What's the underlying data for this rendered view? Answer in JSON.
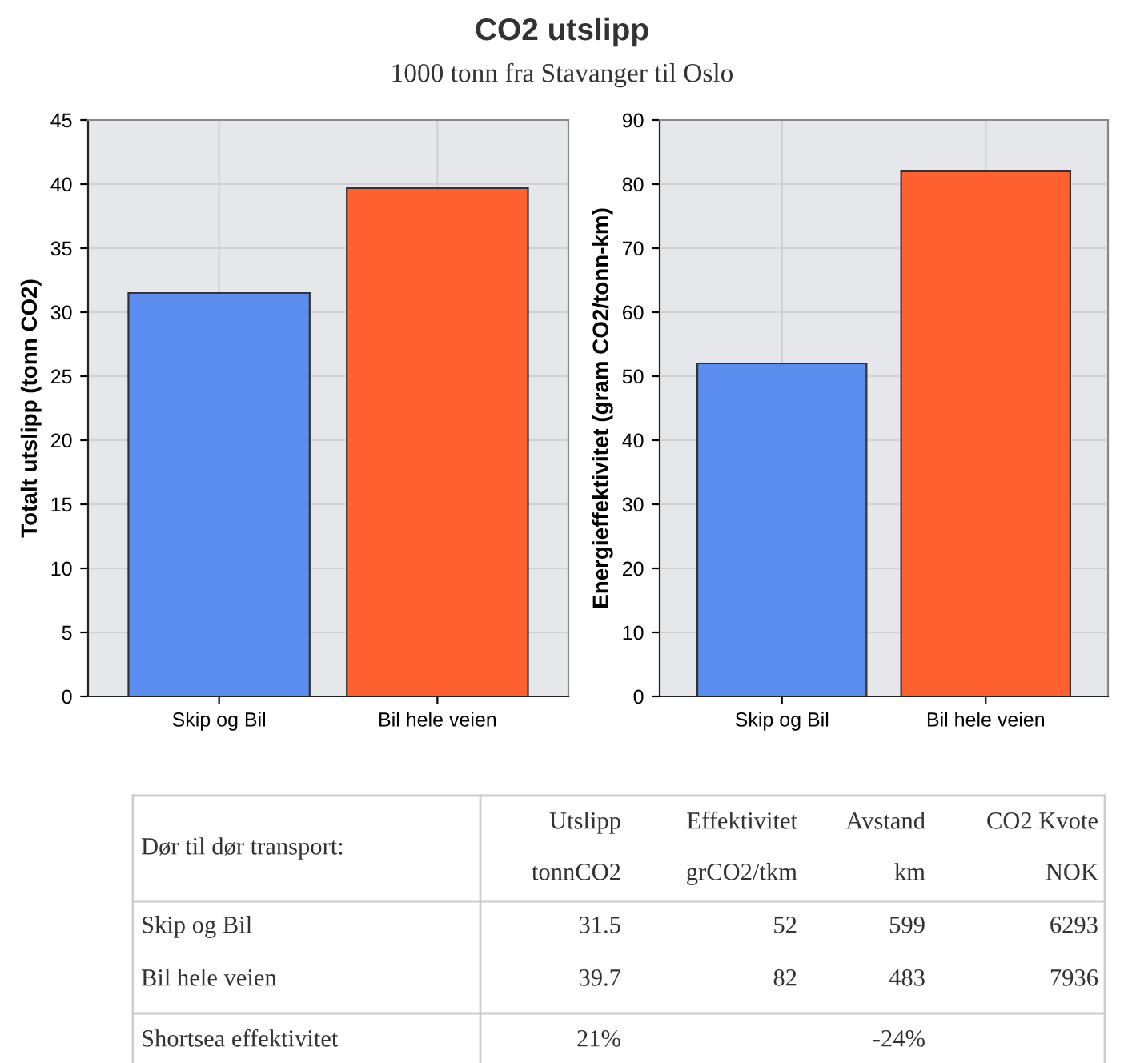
{
  "chart_data": [
    {
      "type": "bar",
      "title": "CO2 utslipp",
      "subtitle": "1000 tonn fra Stavanger til Oslo",
      "categories": [
        "Skip og Bil",
        "Bil hele veien"
      ],
      "values": [
        31.5,
        39.7
      ],
      "colors": [
        "#5b8def",
        "#ff6030"
      ],
      "ylabel": "Totalt utslipp (tonn CO2)",
      "ylim": [
        0,
        45
      ],
      "yticks": [
        0,
        5,
        10,
        15,
        20,
        25,
        30,
        35,
        40,
        45
      ],
      "grid": true
    },
    {
      "type": "bar",
      "categories": [
        "Skip og Bil",
        "Bil hele veien"
      ],
      "values": [
        52,
        82
      ],
      "colors": [
        "#5b8def",
        "#ff6030"
      ],
      "ylabel": "Energieffektivitet (gram CO2/tonn-km)",
      "ylim": [
        0,
        90
      ],
      "yticks": [
        0,
        10,
        20,
        30,
        40,
        50,
        60,
        70,
        80,
        90
      ],
      "grid": true
    },
    {
      "type": "other",
      "title": "Dør til dør transport:",
      "categories": [
        "Utslipp\ntonnCO2",
        "Effektivitet\ngrCO2/tkm",
        "Avstand\nkm",
        "CO2 Kvote\nNOK"
      ],
      "y_categories": [
        "Skip og Bil",
        "Bil hele veien",
        "Shortsea effektivitet"
      ],
      "cell_labels": [
        [
          "31.5",
          "52",
          "599",
          "6293"
        ],
        [
          "39.7",
          "82",
          "483",
          "7936"
        ],
        [
          "21%",
          null,
          "-24%",
          null
        ]
      ]
    }
  ]
}
